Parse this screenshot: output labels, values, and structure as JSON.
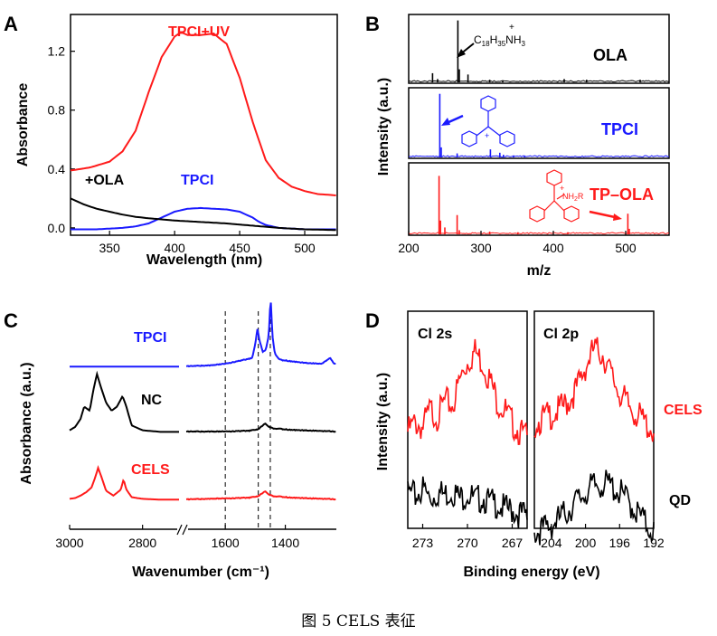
{
  "figure_caption": "图 5 CELS 表征",
  "colors": {
    "red": "#ff1a1a",
    "blue": "#1a1aff",
    "black": "#000000"
  },
  "chart_data": [
    {
      "panel": "A",
      "type": "line",
      "xlabel": "Wavelength (nm)",
      "ylabel": "Absorbance",
      "xlim": [
        320,
        525
      ],
      "ylim": [
        -0.05,
        1.45
      ],
      "xticks": [
        350,
        400,
        450,
        500
      ],
      "yticks": [
        0.0,
        0.4,
        0.8,
        1.2
      ],
      "ytick_labels": [
        "0.0",
        "0.4",
        "0.8",
        "1.2"
      ],
      "series": [
        {
          "name": "TPCI+UV",
          "color": "#ff1a1a",
          "x": [
            320,
            335,
            350,
            360,
            370,
            380,
            390,
            400,
            405,
            410,
            420,
            430,
            440,
            450,
            460,
            470,
            480,
            490,
            500,
            510,
            525
          ],
          "y": [
            0.39,
            0.41,
            0.45,
            0.52,
            0.66,
            0.92,
            1.16,
            1.3,
            1.33,
            1.31,
            1.31,
            1.32,
            1.25,
            1.02,
            0.72,
            0.46,
            0.34,
            0.28,
            0.25,
            0.23,
            0.22
          ]
        },
        {
          "name": "TPCI",
          "color": "#1a1aff",
          "x": [
            320,
            340,
            360,
            370,
            380,
            390,
            400,
            410,
            420,
            430,
            440,
            450,
            460,
            465,
            470,
            480,
            500,
            525
          ],
          "y": [
            -0.01,
            -0.01,
            0.0,
            0.01,
            0.03,
            0.07,
            0.11,
            0.13,
            0.135,
            0.13,
            0.125,
            0.11,
            0.07,
            0.04,
            0.02,
            0.0,
            -0.01,
            -0.01
          ]
        },
        {
          "name": "+OLA",
          "color": "#000000",
          "x": [
            320,
            330,
            340,
            350,
            360,
            370,
            380,
            400,
            420,
            440,
            460,
            480,
            500,
            525
          ],
          "y": [
            0.2,
            0.16,
            0.13,
            0.11,
            0.09,
            0.075,
            0.065,
            0.05,
            0.04,
            0.03,
            0.015,
            0.0,
            -0.01,
            -0.015
          ]
        }
      ]
    },
    {
      "panel": "B",
      "type": "line",
      "xlabel": "m/z",
      "ylabel": "Intensity (a.u.)",
      "xlim": [
        200,
        560
      ],
      "xticks": [
        200,
        300,
        400,
        500
      ],
      "subplots": [
        {
          "name": "OLA",
          "color": "#000000",
          "annotation": "C18H35NH3+",
          "peaks": [
            [
              233,
              0.14
            ],
            [
              240,
              0.05
            ],
            [
              268,
              0.95
            ],
            [
              270,
              0.2
            ],
            [
              282,
              0.12
            ],
            [
              312,
              0.04
            ],
            [
              330,
              0.03
            ],
            [
              415,
              0.05
            ],
            [
              446,
              0.04
            ],
            [
              520,
              0.04
            ]
          ]
        },
        {
          "name": "TPCI",
          "color": "#1a1aff",
          "annotation": "",
          "peaks": [
            [
              243,
              0.95
            ],
            [
              245,
              0.15
            ],
            [
              267,
              0.06
            ],
            [
              313,
              0.12
            ],
            [
              326,
              0.07
            ],
            [
              331,
              0.04
            ],
            [
              345,
              0.03
            ],
            [
              360,
              0.02
            ]
          ]
        },
        {
          "name": "TP–OLA",
          "color": "#ff1a1a",
          "annotation": "",
          "peaks": [
            [
              242,
              0.85
            ],
            [
              244,
              0.2
            ],
            [
              250,
              0.1
            ],
            [
              267,
              0.28
            ],
            [
              270,
              0.06
            ],
            [
              312,
              0.04
            ],
            [
              351,
              0.03
            ],
            [
              420,
              0.03
            ],
            [
              503,
              0.3
            ],
            [
              505,
              0.08
            ]
          ]
        }
      ]
    },
    {
      "panel": "C",
      "type": "line",
      "xlabel": "Wavenumber (cm⁻¹)",
      "ylabel": "Absorbance (a.u.)",
      "x_axis_break": true,
      "xlim_left": [
        3000,
        2700
      ],
      "xlim_right": [
        1730,
        1230
      ],
      "xticks": [
        3000,
        2800,
        1600,
        1400
      ],
      "reference_lines": [
        1600,
        1490,
        1450
      ],
      "series": [
        {
          "name": "TPCI",
          "color": "#1a1aff",
          "offset": 2.0,
          "x": [
            3000,
            2900,
            2800,
            2700,
            1730,
            1650,
            1600,
            1560,
            1510,
            1500,
            1493,
            1485,
            1475,
            1465,
            1455,
            1449,
            1443,
            1435,
            1420,
            1380,
            1330,
            1280,
            1250,
            1240,
            1230
          ],
          "y": [
            0.02,
            0.02,
            0.02,
            0.02,
            0.02,
            0.03,
            0.05,
            0.08,
            0.12,
            0.3,
            0.48,
            0.32,
            0.2,
            0.22,
            0.4,
            0.88,
            0.4,
            0.18,
            0.1,
            0.08,
            0.06,
            0.05,
            0.12,
            0.06,
            0.05
          ]
        },
        {
          "name": "NC",
          "color": "#000000",
          "offset": 1.0,
          "x": [
            3000,
            2985,
            2970,
            2960,
            2945,
            2935,
            2925,
            2915,
            2900,
            2885,
            2870,
            2855,
            2845,
            2830,
            2800,
            2750,
            2700,
            1730,
            1600,
            1520,
            1490,
            1468,
            1455,
            1440,
            1380,
            1300,
            1230
          ],
          "y": [
            0.06,
            0.1,
            0.2,
            0.35,
            0.3,
            0.55,
            0.75,
            0.6,
            0.4,
            0.3,
            0.35,
            0.48,
            0.36,
            0.12,
            0.06,
            0.04,
            0.04,
            0.04,
            0.04,
            0.05,
            0.07,
            0.14,
            0.1,
            0.08,
            0.06,
            0.05,
            0.04
          ]
        },
        {
          "name": "CELS",
          "color": "#ff1a1a",
          "offset": 0.0,
          "x": [
            3000,
            2985,
            2970,
            2955,
            2940,
            2930,
            2922,
            2912,
            2900,
            2880,
            2860,
            2852,
            2845,
            2830,
            2800,
            2750,
            2700,
            1730,
            1600,
            1520,
            1490,
            1468,
            1455,
            1440,
            1380,
            1300,
            1230
          ],
          "y": [
            0.04,
            0.05,
            0.08,
            0.12,
            0.18,
            0.3,
            0.42,
            0.3,
            0.14,
            0.08,
            0.15,
            0.28,
            0.16,
            0.06,
            0.04,
            0.03,
            0.03,
            0.03,
            0.04,
            0.05,
            0.07,
            0.13,
            0.09,
            0.07,
            0.05,
            0.04,
            0.03
          ]
        }
      ]
    },
    {
      "panel": "D",
      "type": "line",
      "xlabel": "Binding energy (eV)",
      "ylabel": "Intensity (a.u.)",
      "subplots": [
        {
          "name": "Cl 2s",
          "xlim": [
            274,
            266
          ],
          "xticks": [
            273,
            270,
            267
          ],
          "series": [
            {
              "name": "CELS",
              "color": "#ff1a1a",
              "x": [
                274,
                273.5,
                273,
                272.5,
                272,
                271.5,
                271,
                270.5,
                270,
                269.5,
                269,
                268.5,
                268,
                267.5,
                267,
                266.5,
                266
              ],
              "y": [
                0.48,
                0.52,
                0.5,
                0.58,
                0.55,
                0.62,
                0.6,
                0.72,
                0.8,
                0.85,
                0.8,
                0.72,
                0.62,
                0.58,
                0.52,
                0.48,
                0.45
              ]
            },
            {
              "name": "QD",
              "color": "#000000",
              "x": [
                274,
                273.5,
                273,
                272.5,
                272,
                271.5,
                271,
                270.5,
                270,
                269.5,
                269,
                268.5,
                268,
                267.5,
                267,
                266.5,
                266
              ],
              "y": [
                0.2,
                0.18,
                0.22,
                0.17,
                0.2,
                0.19,
                0.21,
                0.17,
                0.2,
                0.16,
                0.18,
                0.15,
                0.15,
                0.12,
                0.12,
                0.1,
                0.09
              ]
            }
          ]
        },
        {
          "name": "Cl 2p",
          "xlim": [
            206,
            192
          ],
          "xticks": [
            204,
            200,
            196,
            192
          ],
          "series": [
            {
              "name": "CELS",
              "color": "#ff1a1a",
              "x": [
                206,
                205,
                204,
                203,
                202,
                201,
                200,
                199,
                198,
                197,
                196,
                195,
                194,
                193,
                192
              ],
              "y": [
                0.52,
                0.54,
                0.56,
                0.58,
                0.62,
                0.68,
                0.78,
                0.86,
                0.84,
                0.74,
                0.66,
                0.6,
                0.56,
                0.52,
                0.48
              ]
            },
            {
              "name": "QD",
              "color": "#000000",
              "x": [
                206,
                205,
                204,
                203,
                202,
                201,
                200,
                199,
                198,
                197,
                196,
                195,
                194,
                193,
                192
              ],
              "y": [
                0.02,
                0.03,
                0.05,
                0.08,
                0.12,
                0.16,
                0.2,
                0.23,
                0.24,
                0.23,
                0.2,
                0.16,
                0.11,
                0.06,
                0.02
              ]
            }
          ]
        }
      ],
      "side_labels": [
        "CELS",
        "QD"
      ]
    }
  ],
  "labels": {
    "panel_a": "A",
    "panel_b": "B",
    "panel_c": "C",
    "panel_d": "D",
    "a_tpci_uv": "TPCI+UV",
    "a_tpci": "TPCI",
    "a_ola": "+OLA",
    "b_ola_text": "OLA",
    "b_tpci_text": "TPCI",
    "b_tpola_text": "TP–OLA",
    "c_tpci": "TPCI",
    "c_nc": "NC",
    "c_cels": "CELS",
    "d_cl2s": "Cl 2s",
    "d_cl2p": "Cl 2p",
    "d_cels": "CELS",
    "d_qd": "QD"
  }
}
